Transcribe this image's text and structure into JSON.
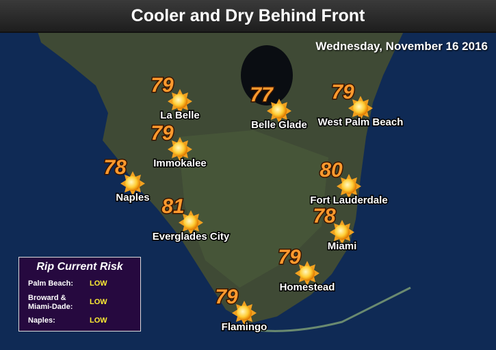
{
  "header": {
    "title": "Cooler and Dry Behind Front",
    "date": "Wednesday, November 16 2016"
  },
  "cities": [
    {
      "name": "La Belle",
      "temp": 79
    },
    {
      "name": "Belle Glade",
      "temp": 77
    },
    {
      "name": "West Palm Beach",
      "temp": 79
    },
    {
      "name": "Immokalee",
      "temp": 79
    },
    {
      "name": "Naples",
      "temp": 78
    },
    {
      "name": "Fort Lauderdale",
      "temp": 80
    },
    {
      "name": "Everglades City",
      "temp": 81
    },
    {
      "name": "Miami",
      "temp": 78
    },
    {
      "name": "Homestead",
      "temp": 79
    },
    {
      "name": "Flamingo",
      "temp": 79
    }
  ],
  "rip_current": {
    "title": "Rip Current Risk",
    "rows": [
      [
        "Palm Beach:",
        "LOW"
      ],
      [
        "Broward & Miami-Dade:",
        "LOW"
      ],
      [
        "Naples:",
        "LOW"
      ]
    ]
  }
}
